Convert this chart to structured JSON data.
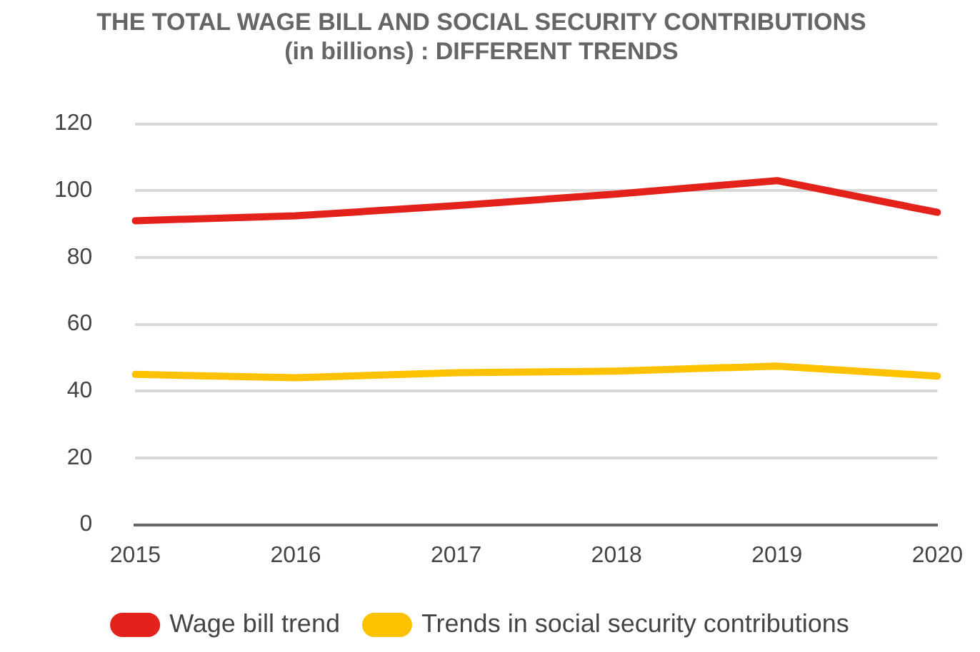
{
  "chart_data": {
    "type": "line",
    "title": [
      "THE TOTAL WAGE BILL AND SOCIAL SECURITY CONTRIBUTIONS",
      "(in billions) : DIFFERENT TRENDS"
    ],
    "categories": [
      "2015",
      "2016",
      "2017",
      "2018",
      "2019",
      "2020"
    ],
    "series": [
      {
        "name": "Wage bill trend",
        "color": "#e3231b",
        "values": [
          91,
          92.5,
          95.5,
          99,
          103,
          93.5
        ]
      },
      {
        "name": "Trends in social security contributions",
        "color": "#fcc200",
        "values": [
          45,
          44,
          45.5,
          46,
          47.5,
          44.5
        ]
      }
    ],
    "ylim": [
      0,
      120
    ],
    "yticks": [
      0,
      20,
      40,
      60,
      80,
      100,
      120
    ],
    "grid": "y",
    "legend": "bottom",
    "marker": "none",
    "line_style": "solid"
  }
}
